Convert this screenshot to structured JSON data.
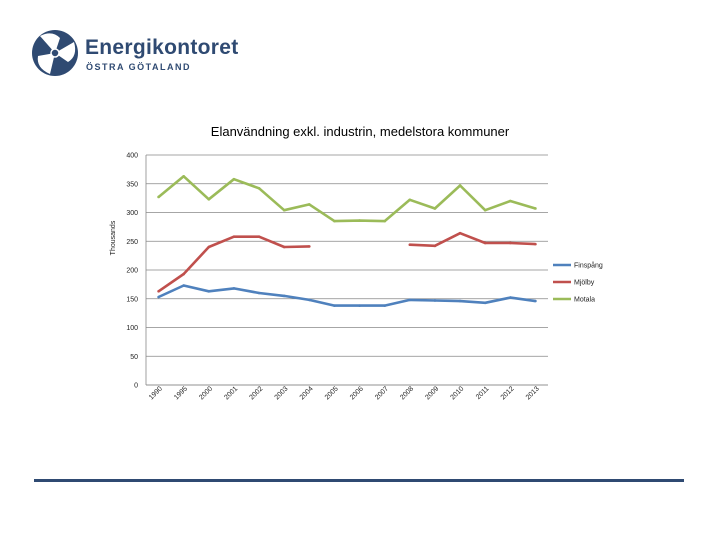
{
  "logo": {
    "name": "Energikontoret",
    "subtitle": "ÖSTRA GÖTALAND",
    "color": "#2f4a72"
  },
  "chart_data": {
    "type": "line",
    "title": "Elanvändning exkl. industrin, medelstora kommuner",
    "xlabel": "",
    "ylabel": "Thousands",
    "categories": [
      "1990",
      "1995",
      "2000",
      "2001",
      "2002",
      "2003",
      "2004",
      "2005",
      "2006",
      "2007",
      "2008",
      "2009",
      "2010",
      "2011",
      "2012",
      "2013"
    ],
    "ylim": [
      0,
      400
    ],
    "yticks": [
      0,
      50,
      100,
      150,
      200,
      250,
      300,
      350,
      400
    ],
    "grid": true,
    "legend_position": "right",
    "series": [
      {
        "name": "Finspång",
        "color": "#4f81bd",
        "values": [
          153,
          173,
          163,
          168,
          160,
          155,
          148,
          138,
          138,
          138,
          148,
          147,
          146,
          143,
          152,
          146
        ]
      },
      {
        "name": "Mjölby",
        "color": "#c0504d",
        "values": [
          163,
          193,
          240,
          258,
          258,
          240,
          241,
          null,
          null,
          null,
          244,
          242,
          264,
          247,
          247,
          245
        ]
      },
      {
        "name": "Motala",
        "color": "#9bbb59",
        "values": [
          327,
          363,
          323,
          358,
          342,
          304,
          314,
          285,
          286,
          285,
          322,
          307,
          347,
          304,
          320,
          307
        ]
      }
    ]
  }
}
